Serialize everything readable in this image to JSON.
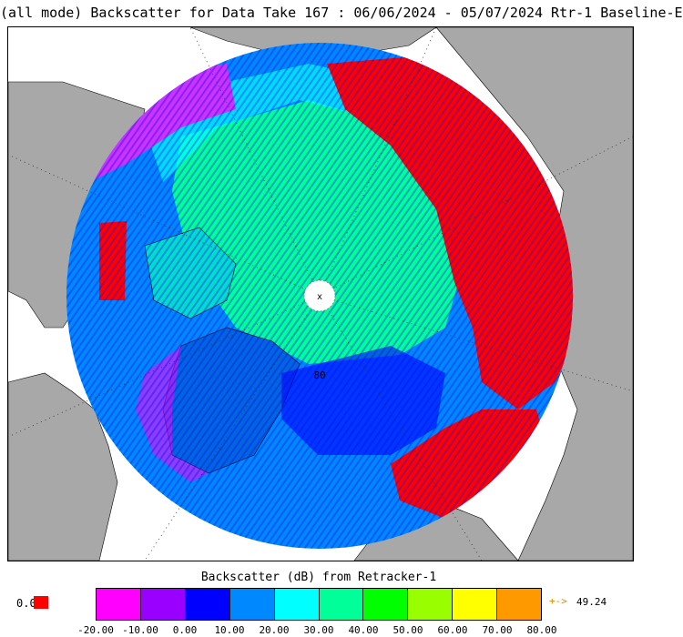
{
  "title": "(all mode) Backscatter for Data Take 167 : 06/06/2024 - 05/07/2024 Rtr-1 Baseline-E",
  "map": {
    "projection": "north-polar-stereographic",
    "center_label": "x",
    "latitude_label": "80",
    "colors": {
      "ocean": "#ffffff",
      "land": "#a8a8a8",
      "red_region": "#ff0000",
      "land_outline": "#000000"
    }
  },
  "colorbar": {
    "title": "Backscatter (dB) from Retracker-1",
    "colors": [
      "#ff00ff",
      "#9900ff",
      "#0000ff",
      "#0088ff",
      "#00ffff",
      "#00ff99",
      "#00ff00",
      "#99ff00",
      "#ffff00",
      "#ff9900"
    ],
    "tick_labels": [
      "-20.00",
      "-10.00",
      "0.00",
      "10.00",
      "20.00",
      "30.00",
      "40.00",
      "50.00",
      "60.00",
      "70.00",
      "80.00"
    ],
    "under_label": "0.0",
    "under_color": "#ff0000",
    "over_arrow": "+->",
    "over_value": "49.24"
  }
}
